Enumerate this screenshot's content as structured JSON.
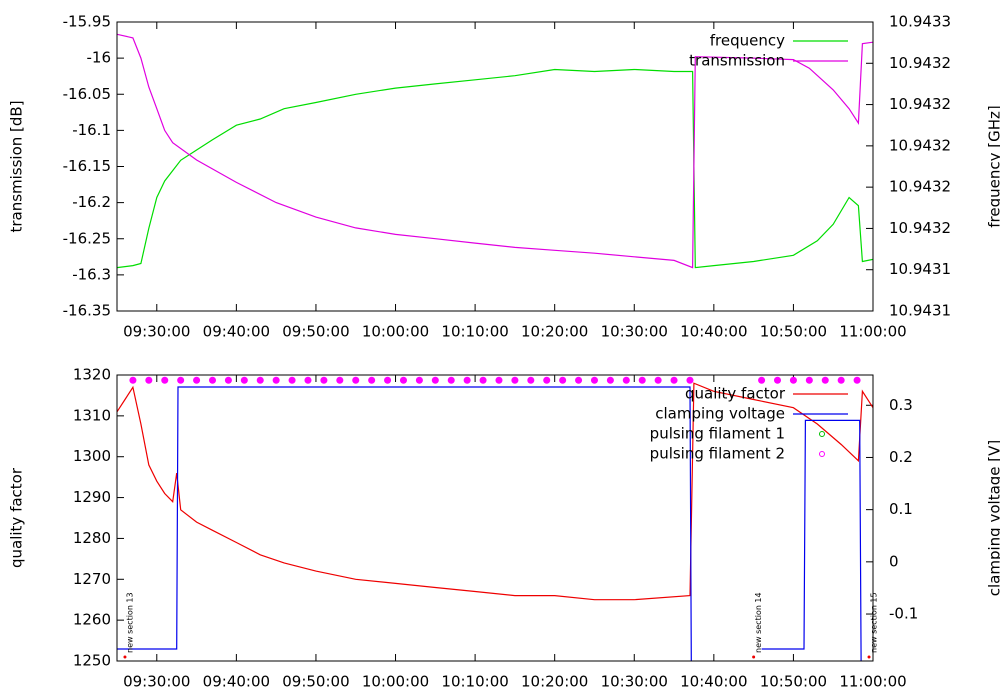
{
  "chart_data": [
    {
      "type": "line",
      "ylabel": "transmission [dB]",
      "y2label": "frequency [GHz]",
      "xlim": [
        "09:25:00",
        "11:00:00"
      ],
      "xticks": [
        "09:30:00",
        "09:40:00",
        "09:50:00",
        "10:00:00",
        "10:10:00",
        "10:20:00",
        "10:30:00",
        "10:40:00",
        "10:50:00",
        "11:00:00"
      ],
      "ylim": [
        -16.35,
        -15.95
      ],
      "yticks": [
        -16.35,
        -16.3,
        -16.25,
        -16.2,
        -16.15,
        -16.1,
        -16.05,
        -16,
        -15.95
      ],
      "y2lim": [
        10.94312,
        10.94326
      ],
      "y2ticks": [
        {
          "value": 10.94312,
          "label": "10.9431"
        },
        {
          "value": 10.94314,
          "label": "10.9431"
        },
        {
          "value": 10.94316,
          "label": "10.9432"
        },
        {
          "value": 10.94318,
          "label": "10.9432"
        },
        {
          "value": 10.9432,
          "label": "10.9432"
        },
        {
          "value": 10.94322,
          "label": "10.9432"
        },
        {
          "value": 10.94324,
          "label": "10.9432"
        },
        {
          "value": 10.94326,
          "label": "10.9433"
        }
      ],
      "legend": "upper right",
      "series": [
        {
          "name": "frequency",
          "color": "#00dd00",
          "axis": "y2",
          "style": "line",
          "x": [
            "09:25:00",
            "09:27:00",
            "09:28:00",
            "09:29:00",
            "09:30:00",
            "09:31:00",
            "09:32:00",
            "09:33:00",
            "09:35:00",
            "09:37:00",
            "09:40:00",
            "09:43:00",
            "09:46:00",
            "09:50:00",
            "09:55:00",
            "10:00:00",
            "10:05:00",
            "10:10:00",
            "10:15:00",
            "10:20:00",
            "10:25:00",
            "10:30:00",
            "10:35:00",
            "10:37:20",
            "10:37:40",
            "10:40:00",
            "10:45:00",
            "10:50:00",
            "10:53:00",
            "10:55:00",
            "10:57:00",
            "10:58:10",
            "10:58:40",
            "11:00:00"
          ],
          "values": [
            10.943141,
            10.943142,
            10.943143,
            10.94316,
            10.943175,
            10.943183,
            10.943188,
            10.943193,
            10.943198,
            10.943203,
            10.94321,
            10.943213,
            10.943218,
            10.943221,
            10.943225,
            10.943228,
            10.94323,
            10.943232,
            10.943234,
            10.943237,
            10.943236,
            10.943237,
            10.943236,
            10.943236,
            10.943141,
            10.943142,
            10.943144,
            10.943147,
            10.943154,
            10.943162,
            10.943175,
            10.943171,
            10.943144,
            10.943145
          ]
        },
        {
          "name": "transmission",
          "color": "#e000e0",
          "style": "line",
          "x": [
            "09:25:00",
            "09:27:00",
            "09:28:00",
            "09:29:00",
            "09:30:00",
            "09:31:00",
            "09:32:00",
            "09:35:00",
            "09:40:00",
            "09:45:00",
            "09:50:00",
            "09:55:00",
            "10:00:00",
            "10:05:00",
            "10:10:00",
            "10:15:00",
            "10:20:00",
            "10:25:00",
            "10:30:00",
            "10:35:00",
            "10:37:20",
            "10:37:40",
            "10:45:00",
            "10:50:00",
            "10:52:00",
            "10:55:00",
            "10:57:00",
            "10:58:10",
            "10:58:40",
            "11:00:00"
          ],
          "values": [
            -15.967,
            -15.972,
            -16.0,
            -16.04,
            -16.07,
            -16.1,
            -16.117,
            -16.141,
            -16.172,
            -16.2,
            -16.22,
            -16.235,
            -16.244,
            -16.25,
            -16.256,
            -16.262,
            -16.266,
            -16.27,
            -16.275,
            -16.28,
            -16.29,
            -15.998,
            -16.0,
            -16.002,
            -16.014,
            -16.044,
            -16.07,
            -16.09,
            -15.98,
            -15.978
          ]
        }
      ]
    },
    {
      "type": "line",
      "ylabel": "quality factor",
      "y2label": "clamping voltage [V]",
      "xlim": [
        "09:25:00",
        "11:00:00"
      ],
      "xticks": [
        "09:30:00",
        "09:40:00",
        "09:50:00",
        "10:00:00",
        "10:10:00",
        "10:20:00",
        "10:30:00",
        "10:40:00",
        "10:50:00",
        "11:00:00"
      ],
      "ylim": [
        1250,
        1320
      ],
      "yticks": [
        1250,
        1260,
        1270,
        1280,
        1290,
        1300,
        1310,
        1320
      ],
      "y2lim": [
        -0.19,
        0.358
      ],
      "y2ticks": [
        -0.1,
        0,
        0.1,
        0.2,
        0.3
      ],
      "legend": "upper right",
      "annotations": [
        {
          "x": "09:26:00",
          "text": "new section 13"
        },
        {
          "x": "10:45:00",
          "text": "new section 14"
        },
        {
          "x": "10:59:30",
          "text": "new section 15"
        }
      ],
      "series": [
        {
          "name": "quality factor",
          "color": "#ee0000",
          "style": "line",
          "x": [
            "09:25:00",
            "09:26:00",
            "09:27:00",
            "09:28:00",
            "09:29:00",
            "09:30:00",
            "09:31:00",
            "09:32:00",
            "09:32:30",
            "09:33:00",
            "09:35:00",
            "09:37:00",
            "09:40:00",
            "09:43:00",
            "09:46:00",
            "09:50:00",
            "09:55:00",
            "10:00:00",
            "10:05:00",
            "10:10:00",
            "10:15:00",
            "10:20:00",
            "10:25:00",
            "10:30:00",
            "10:37:00",
            "10:37:30",
            "10:40:00",
            "10:45:00",
            "10:50:00",
            "10:53:00",
            "10:56:00",
            "10:58:10",
            "10:58:40",
            "11:00:00"
          ],
          "values": [
            1311,
            1314,
            1317,
            1308,
            1298,
            1294,
            1291,
            1289,
            1296,
            1287,
            1284,
            1282,
            1279,
            1276,
            1274,
            1272,
            1270,
            1269,
            1268,
            1267,
            1266,
            1266,
            1265,
            1265,
            1266,
            1318,
            1316,
            1314,
            1312,
            1308,
            1303,
            1299,
            1316,
            1312
          ]
        },
        {
          "name": "clamping voltage",
          "color": "#0000ee",
          "axis": "y2",
          "style": "line",
          "x": [
            "09:25:00",
            "09:32:30",
            "09:32:40",
            "10:37:00",
            "10:37:10",
            "10:38:00",
            "10:46:00",
            "10:51:20",
            "10:51:30",
            "10:58:20",
            "10:58:30"
          ],
          "values": [
            -0.167,
            -0.167,
            0.335,
            0.335,
            -0.19,
            null,
            -0.167,
            -0.167,
            0.271,
            0.271,
            -0.19
          ]
        },
        {
          "name": "pulsing filament 1",
          "color": "#00c000",
          "axis": "y2",
          "style": "points",
          "x": [],
          "values": []
        },
        {
          "name": "pulsing filament 2",
          "color": "#ff00ff",
          "axis": "y2",
          "style": "points",
          "x": [
            "09:27:00",
            "09:29:00",
            "09:31:00",
            "09:33:00",
            "09:35:00",
            "09:37:00",
            "09:39:00",
            "09:41:00",
            "09:43:00",
            "09:45:00",
            "09:47:00",
            "09:49:00",
            "09:51:00",
            "09:53:00",
            "09:55:00",
            "09:57:00",
            "09:59:00",
            "10:01:00",
            "10:03:00",
            "10:05:00",
            "10:07:00",
            "10:09:00",
            "10:11:00",
            "10:13:00",
            "10:15:00",
            "10:17:00",
            "10:19:00",
            "10:21:00",
            "10:23:00",
            "10:25:00",
            "10:27:00",
            "10:29:00",
            "10:31:00",
            "10:33:00",
            "10:35:00",
            "10:37:00",
            "10:46:00",
            "10:48:00",
            "10:50:00",
            "10:52:00",
            "10:54:00",
            "10:56:00",
            "10:58:00"
          ],
          "values": [
            0.348,
            0.348,
            0.348,
            0.348,
            0.348,
            0.348,
            0.348,
            0.348,
            0.348,
            0.348,
            0.348,
            0.348,
            0.348,
            0.348,
            0.348,
            0.348,
            0.348,
            0.348,
            0.348,
            0.348,
            0.348,
            0.348,
            0.348,
            0.348,
            0.348,
            0.348,
            0.348,
            0.348,
            0.348,
            0.348,
            0.348,
            0.348,
            0.348,
            0.348,
            0.348,
            0.348,
            0.348,
            0.348,
            0.348,
            0.348,
            0.348,
            0.348,
            0.348
          ]
        }
      ]
    }
  ]
}
